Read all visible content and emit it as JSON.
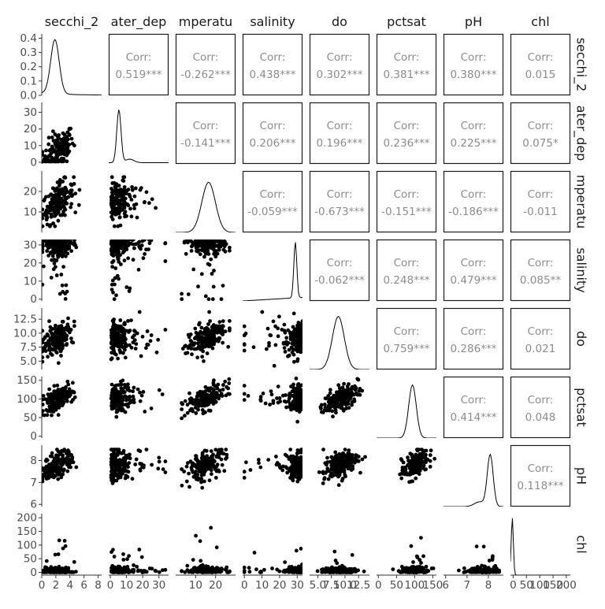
{
  "chart_data": {
    "type": "scatter",
    "variables": [
      "secchi_2",
      "water_depth",
      "temperature",
      "salinity",
      "do",
      "pctsat",
      "pH",
      "chl"
    ],
    "column_strip_labels": [
      "secchi_2",
      "ater_dep",
      "mperatu",
      "salinity",
      "do",
      "pctsat",
      "pH",
      "chl"
    ],
    "row_strip_labels": [
      "secchi_2",
      "ater_dep",
      "mperatu",
      "salinity",
      "do",
      "pctsat",
      "pH",
      "chl"
    ],
    "x_axis_ticks": [
      [
        "0",
        "2",
        "4",
        "6",
        "8"
      ],
      [
        "0",
        "10",
        "20",
        "30"
      ],
      [
        "10",
        "20"
      ],
      [
        "0",
        "10",
        "20",
        "30"
      ],
      [
        "5.0",
        "7.5",
        "10.0",
        "12.5"
      ],
      [
        "0",
        "50",
        "100",
        "150"
      ],
      [
        "6",
        "7",
        "8"
      ],
      [
        "0",
        "50",
        "100",
        "150",
        "200"
      ]
    ],
    "y_axis_ticks": [
      [
        "0.0",
        "0.1",
        "0.2",
        "0.3",
        "0.4"
      ],
      [
        "0",
        "10",
        "20",
        "30"
      ],
      [
        "10",
        "20"
      ],
      [
        "0",
        "10",
        "20",
        "30"
      ],
      [
        "5.0",
        "7.5",
        "10.0",
        "12.5"
      ],
      [
        "0",
        "50",
        "100",
        "150"
      ],
      [
        "6",
        "7",
        "8"
      ],
      [
        "0",
        "50",
        "100",
        "150",
        "200"
      ]
    ],
    "ranges": [
      [
        0,
        8.5
      ],
      [
        -1,
        36
      ],
      [
        0,
        30
      ],
      [
        -1,
        33
      ],
      [
        3.5,
        14.5
      ],
      [
        -5,
        160
      ],
      [
        5.9,
        8.7
      ],
      [
        -10,
        215
      ]
    ],
    "density_y_range": [
      0,
      0.43
    ],
    "correlation_label": "Corr:",
    "correlations": [
      {
        "row": 0,
        "col": 1,
        "value": "0.519***"
      },
      {
        "row": 0,
        "col": 2,
        "value": "-0.262***"
      },
      {
        "row": 0,
        "col": 3,
        "value": "0.438***"
      },
      {
        "row": 0,
        "col": 4,
        "value": "0.302***"
      },
      {
        "row": 0,
        "col": 5,
        "value": "0.381***"
      },
      {
        "row": 0,
        "col": 6,
        "value": "0.380***"
      },
      {
        "row": 0,
        "col": 7,
        "value": "0.015"
      },
      {
        "row": 1,
        "col": 2,
        "value": "-0.141***"
      },
      {
        "row": 1,
        "col": 3,
        "value": "0.206***"
      },
      {
        "row": 1,
        "col": 4,
        "value": "0.196***"
      },
      {
        "row": 1,
        "col": 5,
        "value": "0.236***"
      },
      {
        "row": 1,
        "col": 6,
        "value": "0.225***"
      },
      {
        "row": 1,
        "col": 7,
        "value": "0.075*"
      },
      {
        "row": 2,
        "col": 3,
        "value": "-0.059***"
      },
      {
        "row": 2,
        "col": 4,
        "value": "-0.673***"
      },
      {
        "row": 2,
        "col": 5,
        "value": "-0.151***"
      },
      {
        "row": 2,
        "col": 6,
        "value": "-0.186***"
      },
      {
        "row": 2,
        "col": 7,
        "value": "-0.011"
      },
      {
        "row": 3,
        "col": 4,
        "value": "-0.062***"
      },
      {
        "row": 3,
        "col": 5,
        "value": "0.248***"
      },
      {
        "row": 3,
        "col": 6,
        "value": "0.479***"
      },
      {
        "row": 3,
        "col": 7,
        "value": "0.085**"
      },
      {
        "row": 4,
        "col": 5,
        "value": "0.759***"
      },
      {
        "row": 4,
        "col": 6,
        "value": "0.286***"
      },
      {
        "row": 4,
        "col": 7,
        "value": "0.021"
      },
      {
        "row": 5,
        "col": 6,
        "value": "0.414***"
      },
      {
        "row": 5,
        "col": 7,
        "value": "0.048"
      },
      {
        "row": 6,
        "col": 7,
        "value": "0.118***"
      }
    ],
    "grid": false
  }
}
